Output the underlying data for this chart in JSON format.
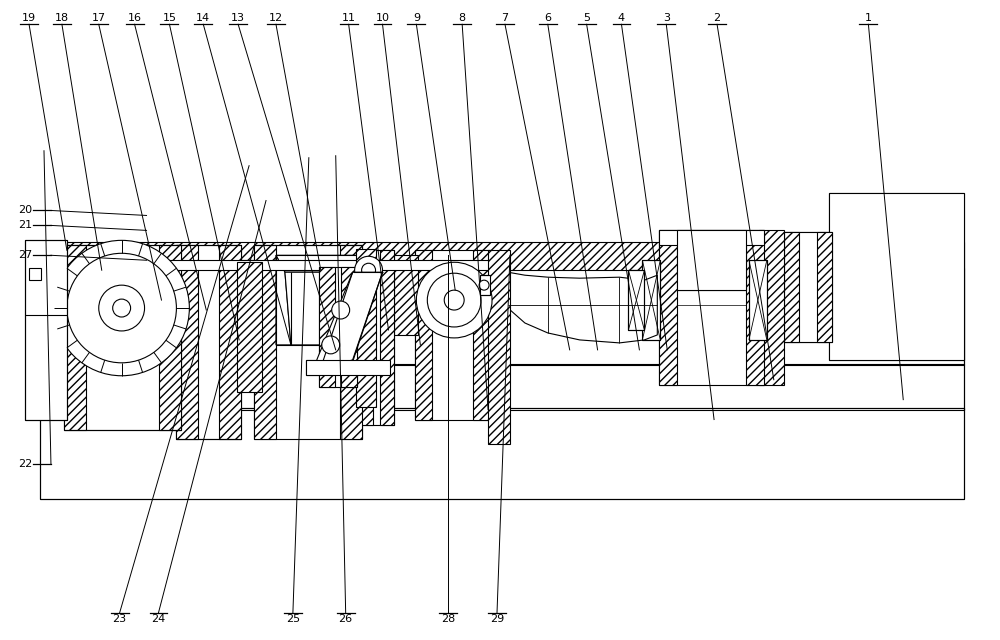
{
  "figsize": [
    10.0,
    6.4
  ],
  "dpi": 100,
  "bg_color": "#ffffff",
  "lw": 0.8,
  "top_labels": [
    [
      "19",
      27,
      618,
      65,
      390
    ],
    [
      "18",
      60,
      618,
      100,
      370
    ],
    [
      "17",
      97,
      618,
      160,
      340
    ],
    [
      "16",
      133,
      618,
      205,
      330
    ],
    [
      "15",
      168,
      618,
      238,
      300
    ],
    [
      "14",
      202,
      618,
      290,
      295
    ],
    [
      "13",
      237,
      618,
      335,
      290
    ],
    [
      "12",
      275,
      618,
      320,
      370
    ],
    [
      "11",
      348,
      618,
      388,
      310
    ],
    [
      "10",
      382,
      618,
      420,
      295
    ],
    [
      "9",
      416,
      618,
      455,
      350
    ],
    [
      "8",
      462,
      618,
      488,
      230
    ],
    [
      "7",
      505,
      618,
      570,
      290
    ],
    [
      "6",
      548,
      618,
      598,
      290
    ],
    [
      "5",
      587,
      618,
      640,
      290
    ],
    [
      "4",
      622,
      618,
      668,
      290
    ],
    [
      "3",
      667,
      618,
      715,
      220
    ],
    [
      "2",
      718,
      618,
      775,
      260
    ],
    [
      "1",
      870,
      618,
      905,
      240
    ]
  ],
  "left_labels": [
    [
      "27",
      30,
      385,
      145,
      380
    ],
    [
      "20",
      30,
      430,
      145,
      425
    ],
    [
      "21",
      30,
      415,
      145,
      410
    ],
    [
      "22",
      30,
      175,
      42,
      490
    ]
  ],
  "bottom_labels": [
    [
      "23",
      118,
      25,
      248,
      475
    ],
    [
      "24",
      157,
      25,
      265,
      440
    ],
    [
      "25",
      292,
      25,
      308,
      483
    ],
    [
      "26",
      345,
      25,
      335,
      485
    ],
    [
      "28",
      448,
      25,
      448,
      385
    ],
    [
      "29",
      497,
      25,
      510,
      385
    ]
  ]
}
